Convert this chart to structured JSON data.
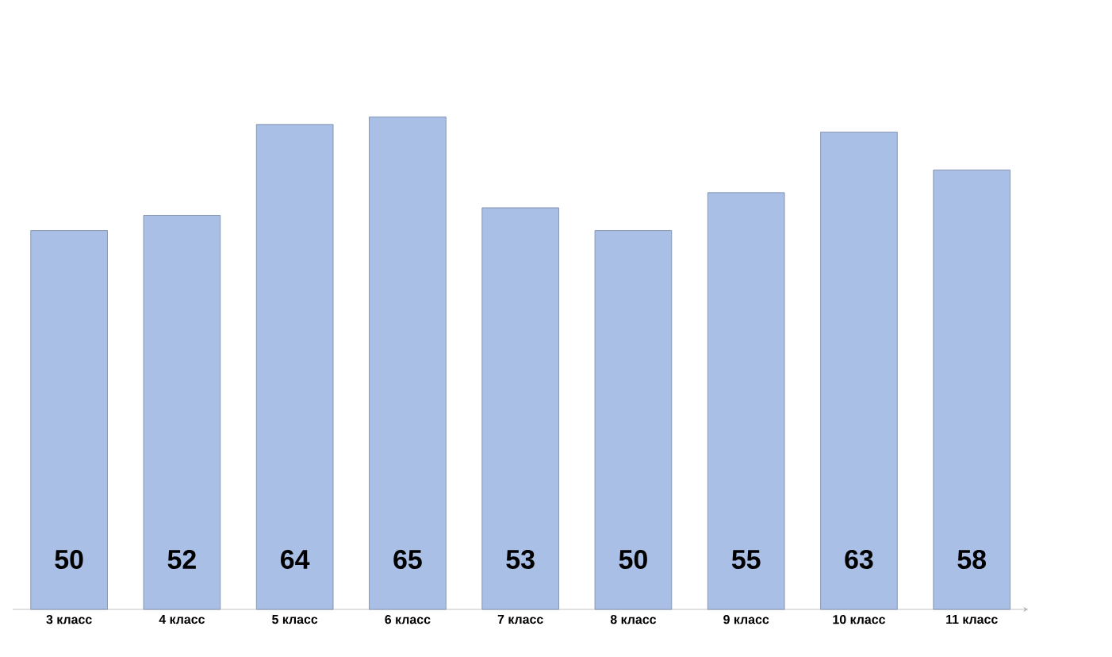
{
  "chart_data": {
    "type": "bar",
    "categories": [
      "3 класс",
      "4 класс",
      "5 класс",
      "6 класс",
      "7 класс",
      "8 класс",
      "9 класс",
      "10 класс",
      "11 класс"
    ],
    "values": [
      50,
      52,
      64,
      65,
      53,
      50,
      55,
      63,
      58
    ],
    "color": "#a9bfe6",
    "data_labels": true
  }
}
